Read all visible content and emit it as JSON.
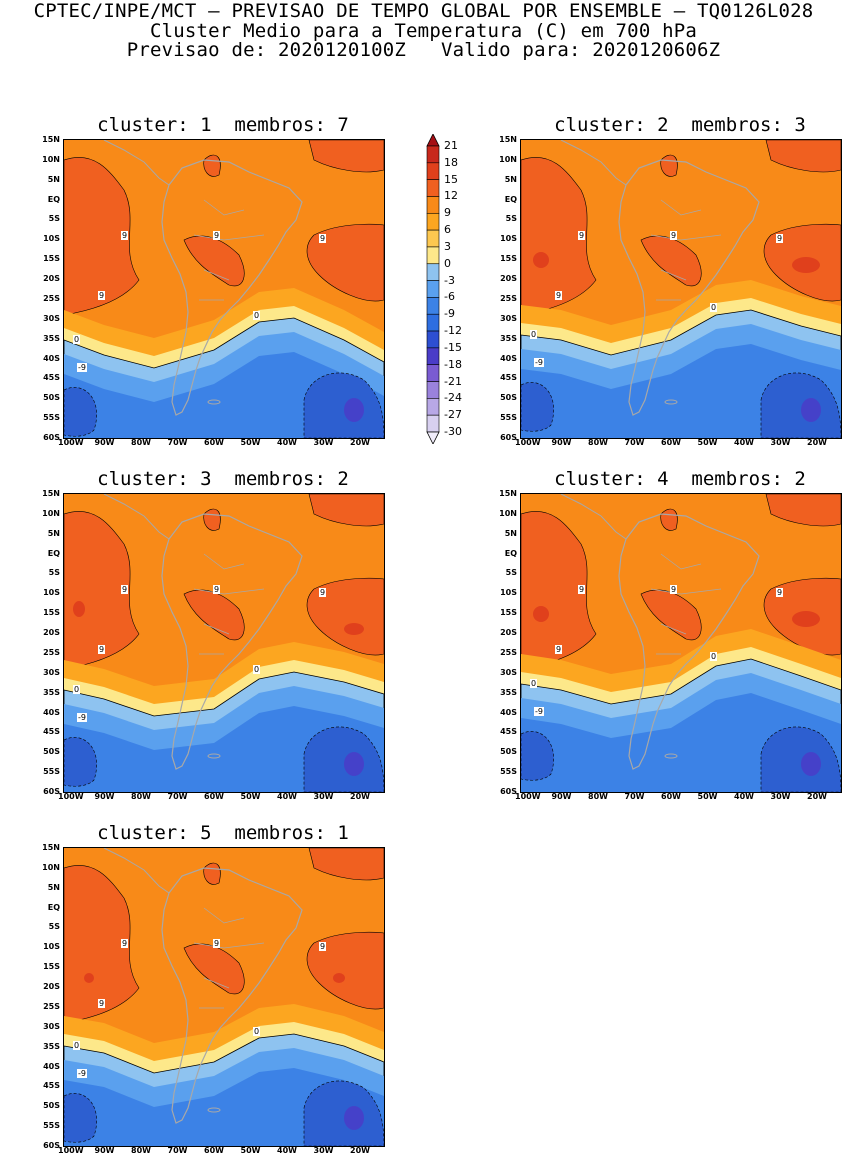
{
  "header": {
    "line1": "CPTEC/INPE/MCT – PREVISAO DE TEMPO GLOBAL POR ENSEMBLE – TQ0126L028",
    "line2": "Cluster Medio para a Temperatura (C) em 700 hPa",
    "line3": "Previsao de: 2020120100Z   Valido para: 2020120606Z"
  },
  "panels": [
    {
      "title": "cluster: 1  membros: 7"
    },
    {
      "title": "cluster: 2  membros: 3"
    },
    {
      "title": "cluster: 3  membros: 2"
    },
    {
      "title": "cluster: 4  membros: 2"
    },
    {
      "title": "cluster: 5  membros: 1"
    }
  ],
  "lat_ticks": [
    "15N",
    "10N",
    "5N",
    "EQ",
    "5S",
    "10S",
    "15S",
    "20S",
    "25S",
    "30S",
    "35S",
    "40S",
    "45S",
    "50S",
    "55S",
    "60S"
  ],
  "lon_ticks": [
    "100W",
    "90W",
    "80W",
    "70W",
    "60W",
    "50W",
    "40W",
    "30W",
    "20W"
  ],
  "colorbar": {
    "levels": [
      "21",
      "18",
      "15",
      "12",
      "9",
      "6",
      "3",
      "0",
      "-3",
      "-6",
      "-9",
      "-12",
      "-15",
      "-18",
      "-21",
      "-24",
      "-27",
      "-30"
    ],
    "colors": [
      "#a50f15",
      "#c8281c",
      "#e0401c",
      "#f06020",
      "#f88a18",
      "#fca620",
      "#fdc850",
      "#fde88a",
      "#8ec3f0",
      "#5aa0ee",
      "#3c82e6",
      "#2e6ee0",
      "#2d4fd2",
      "#4a3cc8",
      "#7a5bd2",
      "#9a82dc",
      "#b8a8e6",
      "#d8d0f0",
      "#f0ecfa"
    ]
  },
  "contour_labels": {
    "nine": "9",
    "zero": "0",
    "minus_nine": "-9"
  },
  "colors": {
    "base_orange": "#f88a18",
    "dark_orange": "#f06020",
    "red_core": "#e0401c",
    "light_orange": "#fca620",
    "yellow": "#fde88a",
    "light_blue": "#8ec3f0",
    "mid_blue": "#5aa0ee",
    "blue": "#3c82e6",
    "dark_blue": "#2d5fd0",
    "purple": "#4a3cc8",
    "coast": "#a8a8a8"
  }
}
